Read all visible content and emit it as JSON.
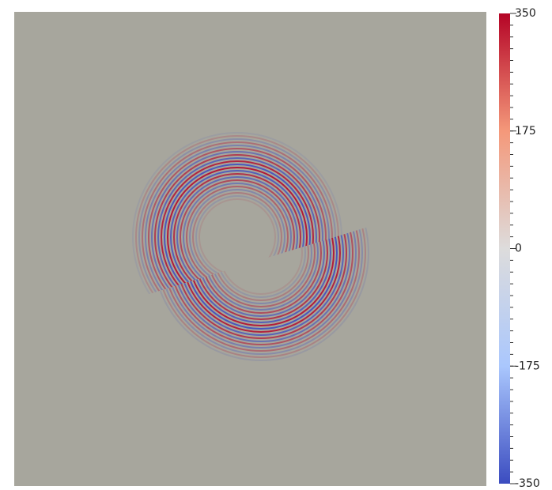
{
  "colorbar": {
    "lim": [
      -350,
      350
    ],
    "ticks": [
      350,
      175,
      0,
      -175,
      -350
    ],
    "colormap": [
      "#b40426",
      "#f4987a",
      "#dddcdc",
      "#aac7fd",
      "#3b4cc0"
    ]
  }
}
